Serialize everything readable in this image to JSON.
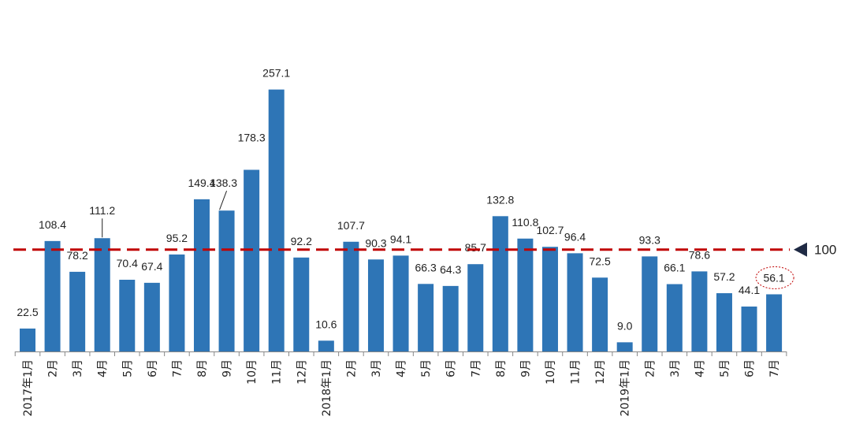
{
  "chart_data": {
    "type": "bar",
    "title": "",
    "xlabel": "",
    "ylabel": "",
    "ylim": [
      0,
      260
    ],
    "grid": false,
    "legend": "none",
    "bar_color": "#2e75b6",
    "reference_line": {
      "value": 100,
      "label": "100",
      "color": "#c00000",
      "style": "dashed"
    },
    "highlight": {
      "index": 30,
      "color": "#c00000"
    },
    "categories": [
      "2017年1月",
      "2月",
      "3月",
      "4月",
      "5月",
      "6月",
      "7月",
      "8月",
      "9月",
      "10月",
      "11月",
      "12月",
      "2018年1月",
      "2月",
      "3月",
      "4月",
      "5月",
      "6月",
      "7月",
      "8月",
      "9月",
      "10月",
      "11月",
      "12月",
      "2019年1月",
      "2月",
      "3月",
      "4月",
      "5月",
      "6月",
      "7月"
    ],
    "values": [
      22.5,
      108.4,
      78.2,
      111.2,
      70.4,
      67.4,
      95.2,
      149.4,
      138.3,
      178.3,
      257.1,
      92.2,
      10.6,
      107.7,
      90.3,
      94.1,
      66.3,
      64.3,
      85.7,
      132.8,
      110.8,
      102.7,
      96.4,
      72.5,
      9.0,
      93.3,
      66.1,
      78.6,
      57.2,
      44.1,
      56.1
    ],
    "value_labels": [
      "22.5",
      "108.4",
      "78.2",
      "111.2",
      "70.4",
      "67.4",
      "95.2",
      "149.4",
      "138.3",
      "178.3",
      "257.1",
      "92.2",
      "10.6",
      "107.7",
      "90.3",
      "94.1",
      "66.3",
      "64.3",
      "85.7",
      "132.8",
      "110.8",
      "102.7",
      "96.4",
      "72.5",
      "9.0",
      "93.3",
      "66.1",
      "78.6",
      "57.2",
      "44.1",
      "56.1"
    ]
  }
}
